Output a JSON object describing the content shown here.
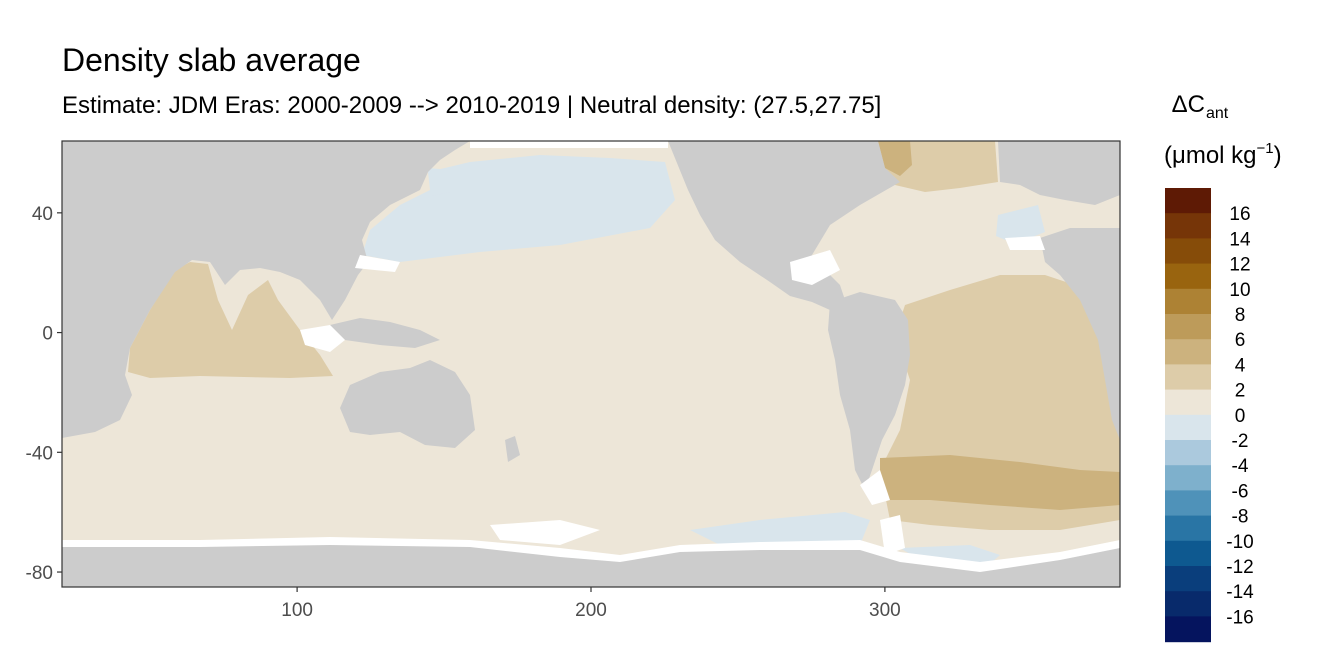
{
  "chart_data": {
    "type": "heatmap",
    "title": "Density slab average",
    "subtitle": "Estimate: JDM Eras: 2000-2009 --> 2010-2019 | Neutral density: (27.5,27.75]",
    "xlim": [
      20,
      380
    ],
    "ylim": [
      -85,
      64
    ],
    "x_ticks": [
      {
        "value": 100,
        "label": "100"
      },
      {
        "value": 200,
        "label": "200"
      },
      {
        "value": 300,
        "label": "300"
      }
    ],
    "y_ticks": [
      {
        "value": 40,
        "label": "40"
      },
      {
        "value": 0,
        "label": "0"
      },
      {
        "value": -40,
        "label": "-40"
      },
      {
        "value": -80,
        "label": "-80"
      }
    ],
    "grid": false,
    "land_color": "#cccccc",
    "no_data_color": "#ffffff",
    "legend": {
      "position": "right",
      "title_main": "ΔC",
      "title_sub": "ant",
      "unit_before": "(μmol kg",
      "unit_sup": "−1",
      "unit_after": ")",
      "bins": [
        {
          "from": 16,
          "to": 18,
          "color": "#5e1a05"
        },
        {
          "from": 14,
          "to": 16,
          "color": "#763508"
        },
        {
          "from": 12,
          "to": 14,
          "color": "#864c09"
        },
        {
          "from": 10,
          "to": 12,
          "color": "#99640f"
        },
        {
          "from": 8,
          "to": 10,
          "color": "#ad8234"
        },
        {
          "from": 6,
          "to": 8,
          "color": "#bd9b5a"
        },
        {
          "from": 4,
          "to": 6,
          "color": "#ccb27e"
        },
        {
          "from": 2,
          "to": 4,
          "color": "#ddcca9"
        },
        {
          "from": 0,
          "to": 2,
          "color": "#ede6d8"
        },
        {
          "from": -2,
          "to": 0,
          "color": "#d9e5ec"
        },
        {
          "from": -4,
          "to": -2,
          "color": "#abc9dd"
        },
        {
          "from": -6,
          "to": -4,
          "color": "#7eb0cc"
        },
        {
          "from": -8,
          "to": -6,
          "color": "#4f92b9"
        },
        {
          "from": -10,
          "to": -8,
          "color": "#2975a5"
        },
        {
          "from": -12,
          "to": -10,
          "color": "#0e5990"
        },
        {
          "from": -14,
          "to": -12,
          "color": "#0a3e7c"
        },
        {
          "from": -16,
          "to": -14,
          "color": "#082a6b"
        },
        {
          "from": -18,
          "to": -16,
          "color": "#05145e"
        }
      ],
      "labels": [
        "16",
        "14",
        "12",
        "10",
        "8",
        "6",
        "4",
        "2",
        "0",
        "-2",
        "-4",
        "-6",
        "-8",
        "-10",
        "-12",
        "-14",
        "-16"
      ]
    },
    "regions": [
      {
        "name": "indian-ocean-north",
        "range": "2 to 4"
      },
      {
        "name": "pacific-ocean",
        "range": "0 to 2"
      },
      {
        "name": "north-pacific",
        "range": "-2 to 0"
      },
      {
        "name": "north-atlantic",
        "range": "0 to 2"
      },
      {
        "name": "south-atlantic",
        "range": "2 to 4"
      },
      {
        "name": "south-atlantic-band",
        "range": "4 to 6"
      },
      {
        "name": "southern-ocean",
        "range": "0 to 2"
      }
    ]
  }
}
